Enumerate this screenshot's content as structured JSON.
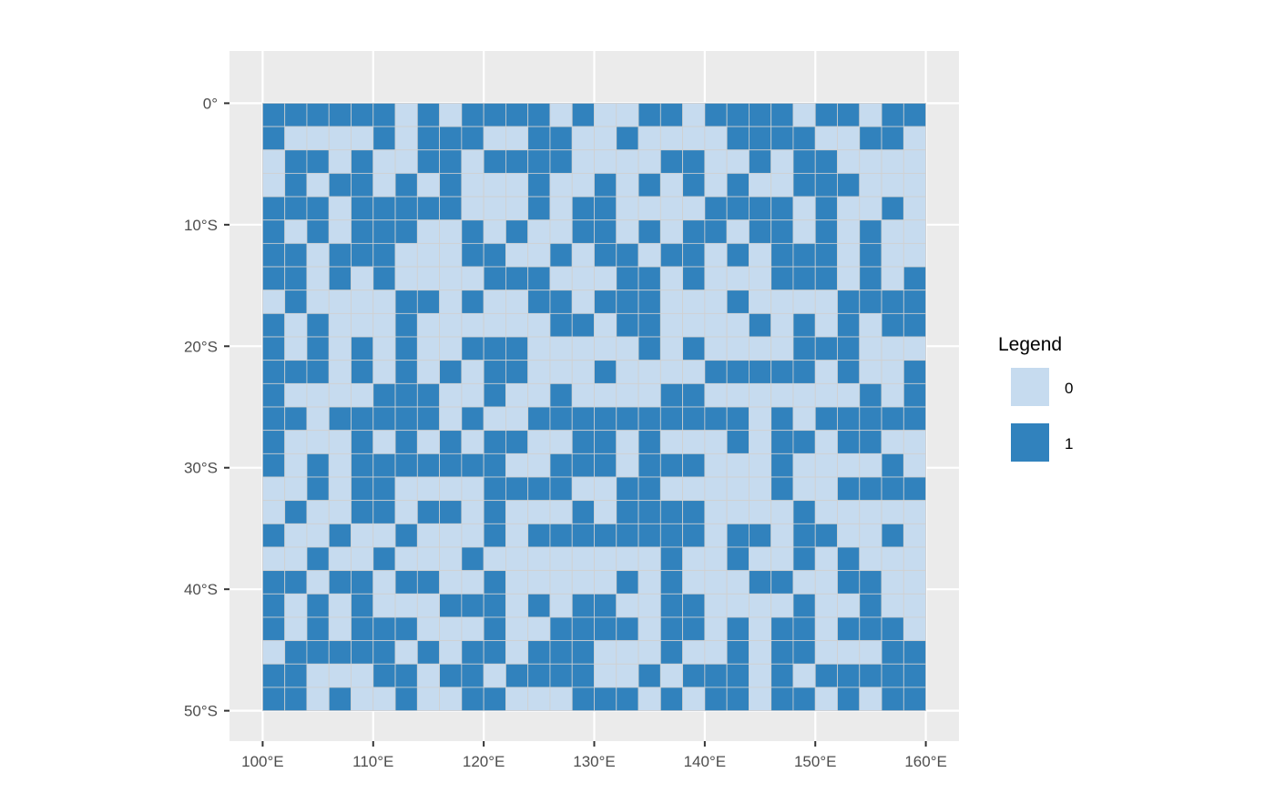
{
  "chart_data": {
    "type": "heatmap",
    "title": "",
    "xlabel": "",
    "ylabel": "",
    "x_range": [
      100,
      160
    ],
    "y_range": [
      -50,
      0
    ],
    "xlim": [
      97,
      163
    ],
    "ylim": [
      -52.5,
      4.3
    ],
    "x_ticks": [
      100,
      110,
      120,
      130,
      140,
      150,
      160
    ],
    "x_tick_labels": [
      "100°E",
      "110°E",
      "120°E",
      "130°E",
      "140°E",
      "150°E",
      "160°E"
    ],
    "y_ticks": [
      0,
      -10,
      -20,
      -30,
      -40,
      -50
    ],
    "y_tick_labels": [
      "0°",
      "10°S",
      "20°S",
      "30°S",
      "40°S",
      "50°S"
    ],
    "grid": true,
    "cell_columns": 30,
    "cell_rows": 26,
    "rows_top_to_bottom": [
      "111111010111101001101111011011",
      "100001011100110010000111100110",
      "011010011011110000110010110000",
      "010110101000100101010100111000",
      "111011111000101100001111010010",
      "101011100101001101011011010100",
      "110111000110010110110101110100",
      "110101000011100011010001110101",
      "010000110100110111000100001111",
      "101000100000011011000010101011",
      "101010100111000001010000111000",
      "111010101011000100001111101001",
      "100001110010010000110000000101",
      "110111110100111111111101011111",
      "100010101011001101000101101100",
      "101011111110011101110001000010",
      "001011000011110011000001001111",
      "010011011010001011110000100000",
      "100100100010111111110110110010",
      "001001000100000000100100101000",
      "110110110010000010100011001100",
      "101010001110101100110000100100",
      "101011100010011110110101101110",
      "011111010110111000100101100011",
      "110001101101111001011101011111",
      "110100100110001110101101101011"
    ],
    "legend": {
      "title": "Legend",
      "position": "right",
      "entries": [
        {
          "label": "0",
          "color": "#c6dbef"
        },
        {
          "label": "1",
          "color": "#3182bd"
        }
      ]
    },
    "colors": {
      "panel_background": "#ebebeb",
      "grid_line": "#ffffff",
      "cell_border": "#d0d0d0",
      "tick_text": "#4d4d4d",
      "tick_mark": "#333333"
    }
  }
}
